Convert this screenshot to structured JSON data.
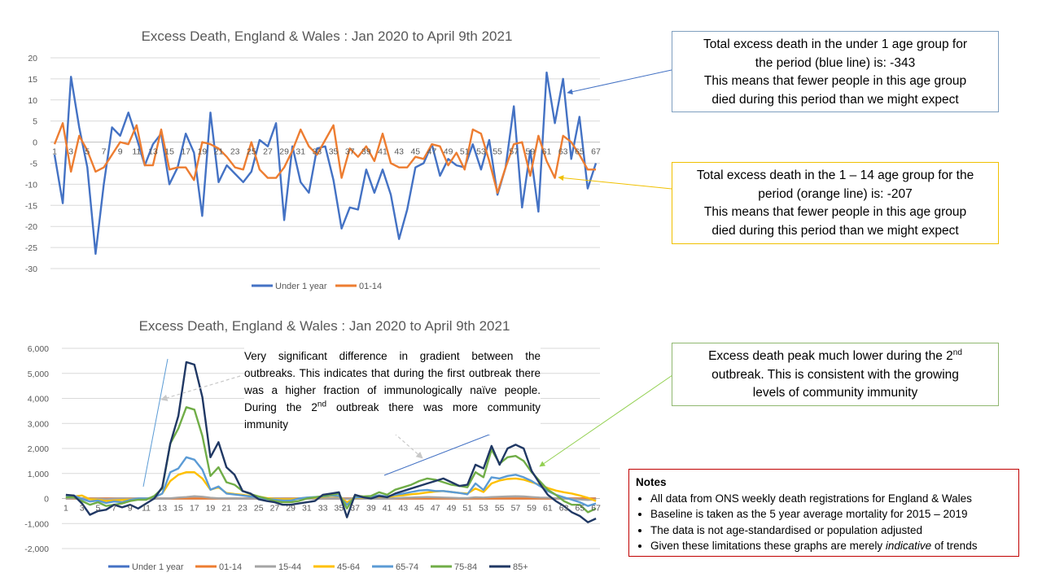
{
  "chart_data": [
    {
      "type": "line",
      "title": "Excess Death, England & Wales : Jan 2020 to April 9th 2021",
      "xlabel": "",
      "ylabel": "",
      "ylim": [
        -30,
        20
      ],
      "yticks": [
        "20",
        "15",
        "10",
        "5",
        "0",
        "-5",
        "-10",
        "-15",
        "-20",
        "-25",
        "-30"
      ],
      "xticks": [
        "1",
        "3",
        "5",
        "7",
        "9",
        "11",
        "13",
        "15",
        "17",
        "19",
        "21",
        "23",
        "25",
        "27",
        "29",
        "31",
        "33",
        "35",
        "37",
        "39",
        "41",
        "43",
        "45",
        "47",
        "49",
        "51",
        "53",
        "55",
        "57",
        "59",
        "61",
        "63",
        "65",
        "67"
      ],
      "legend": "bottom",
      "series": [
        {
          "name": "Under 1 year",
          "color": "#4472c4",
          "values": [
            -3,
            -14.5,
            15.5,
            3.5,
            -6,
            -26.5,
            -10,
            3.5,
            1.5,
            7,
            1,
            -5.5,
            -0.5,
            2,
            -10,
            -6,
            2,
            -2.5,
            -17.5,
            7,
            -9.5,
            -5.5,
            -7.5,
            -9.5,
            -7,
            0.5,
            -1,
            4.5,
            -18.5,
            -1,
            -9.5,
            -12,
            -1.5,
            -1,
            -9,
            -20.5,
            -15.5,
            -16,
            -6.5,
            -12,
            -6.5,
            -12.5,
            -23,
            -16,
            -6,
            -5,
            -0.5,
            -8,
            -4,
            -5.5,
            -6,
            -0.5,
            -6.5,
            0.5,
            -12.5,
            -6,
            8.5,
            -15.5,
            -2,
            -16.5,
            16.5,
            4.5,
            15,
            -4,
            6,
            -11,
            -5
          ]
        },
        {
          "name": "01-14",
          "color": "#ed7d31",
          "values": [
            -0.5,
            4.5,
            -7,
            1.5,
            -2,
            -7,
            -6,
            -3,
            0,
            -0.5,
            4,
            -5.5,
            -5.5,
            3,
            -6.5,
            -6,
            -6,
            -9,
            0,
            -0.5,
            -1.5,
            -3.5,
            -6,
            -6.5,
            0,
            -6.5,
            -8.5,
            -8.5,
            -6,
            -2,
            3,
            -1,
            -3,
            0.5,
            4,
            -8.5,
            -1.5,
            -3.5,
            -1,
            -4.5,
            2,
            -5,
            -6,
            -6,
            -3.5,
            -4,
            -0.5,
            -1,
            -5.5,
            -2.5,
            -6.5,
            3,
            2,
            -4.5,
            -12,
            -6,
            -0.5,
            0,
            -8,
            1.5,
            -4.5,
            -8.5,
            1.5,
            0,
            -3,
            -6.5,
            -6.5
          ]
        }
      ]
    },
    {
      "type": "line",
      "title": "Excess Death, England & Wales : Jan 2020 to April 9th 2021",
      "xlabel": "",
      "ylabel": "",
      "ylim": [
        -2000,
        6000
      ],
      "yticks": [
        "6,000",
        "5,000",
        "4,000",
        "3,000",
        "2,000",
        "1,000",
        "0",
        "-1,000",
        "-2,000"
      ],
      "xticks": [
        "1",
        "3",
        "5",
        "7",
        "9",
        "11",
        "13",
        "15",
        "17",
        "19",
        "21",
        "23",
        "25",
        "27",
        "29",
        "31",
        "33",
        "35",
        "37",
        "39",
        "41",
        "43",
        "45",
        "47",
        "49",
        "51",
        "53",
        "55",
        "57",
        "59",
        "61",
        "63",
        "65",
        "67"
      ],
      "legend": "bottom",
      "series": [
        {
          "name": "Under 1 year",
          "color": "#4472c4",
          "values": [
            0,
            0,
            0,
            0,
            0,
            0,
            0,
            0,
            0,
            0,
            0,
            0,
            0,
            0,
            0,
            0,
            0,
            0,
            0,
            0,
            0,
            0,
            0,
            0,
            0,
            0,
            0,
            0,
            0,
            0,
            0,
            0,
            0,
            0,
            0,
            0,
            0,
            0,
            0,
            0,
            0,
            0,
            0,
            0,
            0,
            0,
            0,
            0,
            0,
            0,
            0,
            0,
            0,
            0,
            0,
            0,
            0,
            0,
            0,
            0,
            0,
            0,
            0,
            0,
            0,
            0,
            0
          ]
        },
        {
          "name": "01-14",
          "color": "#ed7d31",
          "values": [
            0,
            0,
            0,
            0,
            0,
            0,
            0,
            0,
            0,
            0,
            0,
            0,
            0,
            0,
            0,
            0,
            0,
            0,
            0,
            0,
            0,
            0,
            0,
            0,
            0,
            0,
            0,
            0,
            0,
            0,
            0,
            0,
            0,
            0,
            0,
            0,
            0,
            0,
            0,
            0,
            0,
            0,
            0,
            0,
            0,
            0,
            0,
            0,
            0,
            0,
            0,
            0,
            0,
            0,
            0,
            0,
            0,
            0,
            0,
            0,
            0,
            0,
            0,
            0,
            0,
            0,
            0
          ]
        },
        {
          "name": "15-44",
          "color": "#a5a5a5",
          "values": [
            0,
            20,
            10,
            -20,
            -10,
            -30,
            -10,
            0,
            -10,
            0,
            0,
            -10,
            0,
            10,
            40,
            60,
            90,
            70,
            30,
            10,
            10,
            0,
            0,
            0,
            0,
            0,
            0,
            -10,
            -10,
            -10,
            0,
            -10,
            0,
            0,
            0,
            -20,
            0,
            -10,
            0,
            -10,
            0,
            10,
            30,
            40,
            50,
            60,
            50,
            40,
            30,
            20,
            20,
            50,
            40,
            60,
            70,
            80,
            90,
            80,
            60,
            40,
            30,
            10,
            0,
            -20,
            -40,
            -60,
            -40
          ]
        },
        {
          "name": "45-64",
          "color": "#ffc000",
          "values": [
            50,
            80,
            120,
            -30,
            -50,
            -100,
            -80,
            -60,
            -40,
            -30,
            0,
            50,
            200,
            700,
            950,
            1050,
            1050,
            800,
            350,
            450,
            220,
            180,
            150,
            100,
            80,
            20,
            -20,
            -30,
            -30,
            0,
            30,
            30,
            60,
            100,
            80,
            -150,
            20,
            40,
            50,
            80,
            60,
            100,
            130,
            170,
            200,
            240,
            280,
            300,
            260,
            220,
            200,
            400,
            260,
            600,
            720,
            780,
            800,
            750,
            650,
            550,
            420,
            320,
            250,
            200,
            120,
            30,
            -100
          ]
        },
        {
          "name": "65-74",
          "color": "#5b9bd5",
          "values": [
            100,
            120,
            -20,
            -120,
            -80,
            -180,
            -120,
            -150,
            -60,
            0,
            0,
            50,
            200,
            1050,
            1200,
            1650,
            1550,
            1150,
            350,
            480,
            200,
            160,
            120,
            80,
            50,
            -20,
            -50,
            -80,
            -80,
            0,
            40,
            60,
            80,
            120,
            100,
            -250,
            40,
            60,
            80,
            130,
            80,
            150,
            200,
            260,
            320,
            340,
            300,
            300,
            260,
            220,
            170,
            600,
            340,
            850,
            800,
            900,
            950,
            850,
            700,
            500,
            300,
            150,
            50,
            -50,
            -150,
            -300,
            -200
          ]
        },
        {
          "name": "75-84",
          "color": "#70ad47",
          "values": [
            50,
            50,
            -100,
            -250,
            -150,
            -300,
            -250,
            -200,
            -100,
            -50,
            -50,
            100,
            400,
            2200,
            2800,
            3650,
            3550,
            2500,
            900,
            1250,
            650,
            550,
            300,
            180,
            80,
            0,
            -100,
            -150,
            -150,
            -100,
            0,
            50,
            100,
            150,
            200,
            -400,
            120,
            80,
            100,
            250,
            150,
            350,
            450,
            550,
            700,
            800,
            750,
            650,
            550,
            500,
            450,
            1050,
            850,
            1950,
            1400,
            1650,
            1700,
            1500,
            1050,
            700,
            350,
            150,
            -100,
            -250,
            -250,
            -550,
            -400
          ]
        },
        {
          "name": "85+",
          "color": "#203864",
          "values": [
            150,
            120,
            -200,
            -650,
            -500,
            -450,
            -250,
            -350,
            -250,
            -400,
            -200,
            0,
            450,
            2200,
            3300,
            5450,
            5350,
            4050,
            1650,
            2250,
            1250,
            950,
            300,
            200,
            -30,
            -100,
            -150,
            -250,
            -250,
            -200,
            -150,
            -100,
            150,
            200,
            250,
            -750,
            150,
            50,
            0,
            100,
            50,
            200,
            300,
            400,
            500,
            600,
            700,
            800,
            650,
            500,
            550,
            1350,
            1200,
            2100,
            1350,
            2000,
            2150,
            2000,
            1100,
            600,
            150,
            -100,
            -300,
            -550,
            -700,
            -950,
            -800
          ]
        }
      ]
    }
  ],
  "annotations": {
    "under1": {
      "line1": "Total excess death in the under 1 age group for",
      "line2": "the period (blue line) is:  -343",
      "line3": "This means that fewer people in this age group",
      "line4": "died during this period than we might expect"
    },
    "age1_14": {
      "line1": "Total excess death in the 1 – 14 age group for the",
      "line2": "period (orange line) is:  -207",
      "line3": "This means that fewer people in this age group",
      "line4": "died during this period than we might expect"
    },
    "peak": {
      "line1a": "Excess death peak much lower during the 2",
      "line1sup": "nd",
      "line2": "outbreak. This is consistent with the growing",
      "line3": "levels of community immunity"
    },
    "gradient": {
      "part1": "Very significant difference in gradient between the outbreaks. This indicates that during the first outbreak there was a higher fraction of immunologically naïve people. During the 2",
      "sup": "nd",
      "part2": " outbreak there was more community immunity"
    }
  },
  "notes": {
    "title": "Notes",
    "item1": "All data from ONS weekly death registrations for England & Wales",
    "item2": "Baseline is taken as the 5 year average mortality for 2015 – 2019",
    "item3": "The data is not age-standardised or population adjusted",
    "item4_pre": "Given these limitations these graphs are merely ",
    "item4_em": "indicative",
    "item4_post": " of trends"
  },
  "colors": {
    "under1": "#4472c4",
    "age1_14": "#ed7d31",
    "box_blue_border": "#7f9fbf",
    "box_orange_border": "#f0c000",
    "box_green_border": "#90b870",
    "notes_border": "#c00000"
  }
}
